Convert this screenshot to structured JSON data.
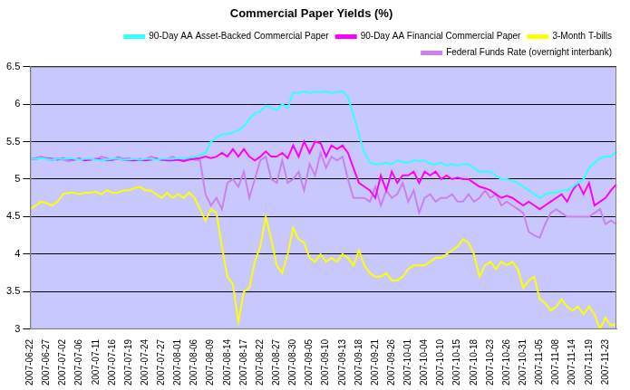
{
  "chart_data": {
    "type": "line",
    "title": "Commercial Paper Yields (%)",
    "categories": [
      "2007-06-22",
      null,
      null,
      "2007-06-27",
      null,
      null,
      "2007-07-02",
      null,
      null,
      "2007-07-06",
      null,
      null,
      "2007-07-11",
      null,
      null,
      "2007-07-16",
      null,
      null,
      "2007-07-19",
      null,
      null,
      "2007-07-24",
      null,
      null,
      "2007-07-27",
      null,
      null,
      "2007-08-01",
      null,
      null,
      "2007-08-06",
      null,
      null,
      "2007-08-09",
      null,
      null,
      "2007-08-14",
      null,
      null,
      "2007-08-17",
      null,
      null,
      "2007-08-22",
      null,
      null,
      "2007-08-27",
      null,
      null,
      "2007-08-30",
      null,
      null,
      "2007-09-05",
      null,
      null,
      "2007-09-10",
      null,
      null,
      "2007-09-13",
      null,
      null,
      "2007-09-18",
      null,
      null,
      "2007-09-21",
      null,
      null,
      "2007-09-26",
      null,
      null,
      "2007-10-01",
      null,
      null,
      "2007-10-04",
      null,
      null,
      "2007-10-10",
      null,
      null,
      "2007-10-15",
      null,
      null,
      "2007-10-18",
      null,
      null,
      "2007-10-23",
      null,
      null,
      "2007-10-26",
      null,
      null,
      "2007-10-31",
      null,
      null,
      "2007-11-05",
      null,
      null,
      "2007-11-08",
      null,
      null,
      "2007-11-14",
      null,
      null,
      "2007-11-19",
      null,
      null,
      "2007-11-23",
      null,
      null
    ],
    "series": [
      {
        "name": "90-Day AA Asset-Backed Commercial Paper",
        "color": "#33ffff",
        "values": [
          5.27,
          5.27,
          5.28,
          5.27,
          5.26,
          5.27,
          5.27,
          5.28,
          5.27,
          5.26,
          5.27,
          5.27,
          5.26,
          5.25,
          5.26,
          5.27,
          5.27,
          5.26,
          5.26,
          5.27,
          5.26,
          5.27,
          5.27,
          5.26,
          5.27,
          5.27,
          5.27,
          5.28,
          5.28,
          5.29,
          5.3,
          5.32,
          5.35,
          5.5,
          5.55,
          5.6,
          5.6,
          5.62,
          5.65,
          5.7,
          5.8,
          5.88,
          5.9,
          5.98,
          5.95,
          5.92,
          6.0,
          5.95,
          6.15,
          6.15,
          6.17,
          6.15,
          6.17,
          6.16,
          6.17,
          6.15,
          6.16,
          6.17,
          6.1,
          5.85,
          5.6,
          5.35,
          5.22,
          5.2,
          5.2,
          5.22,
          5.2,
          5.25,
          5.23,
          5.22,
          5.25,
          5.24,
          5.25,
          5.2,
          5.2,
          5.22,
          5.18,
          5.2,
          5.18,
          5.2,
          5.2,
          5.15,
          5.1,
          5.1,
          5.1,
          5.05,
          5.0,
          5.0,
          4.98,
          4.95,
          4.9,
          4.85,
          4.8,
          4.75,
          4.8,
          4.82,
          4.82,
          4.85,
          4.85,
          4.9,
          4.95,
          5.0,
          5.15,
          5.22,
          5.28,
          5.3,
          5.3,
          5.37
        ]
      },
      {
        "name": "90-Day AA Financial Commercial Paper",
        "color": "#ff00ff",
        "values": [
          5.27,
          5.27,
          5.28,
          5.28,
          5.27,
          5.26,
          5.28,
          5.27,
          5.26,
          5.27,
          5.25,
          5.26,
          5.27,
          5.26,
          5.25,
          5.26,
          5.27,
          5.26,
          5.25,
          5.25,
          5.26,
          5.25,
          5.26,
          5.27,
          5.26,
          5.25,
          5.25,
          5.26,
          5.24,
          5.26,
          5.27,
          5.28,
          5.3,
          5.28,
          5.3,
          5.35,
          5.3,
          5.4,
          5.3,
          5.4,
          5.3,
          5.25,
          5.3,
          5.37,
          5.3,
          5.3,
          5.35,
          5.28,
          5.45,
          5.3,
          5.5,
          5.35,
          5.5,
          5.48,
          5.3,
          5.45,
          5.4,
          5.45,
          5.35,
          5.15,
          4.95,
          4.9,
          4.85,
          4.75,
          5.05,
          4.85,
          5.1,
          4.95,
          5.05,
          5.05,
          5.1,
          4.95,
          5.1,
          5.05,
          5.1,
          5.0,
          5.05,
          5.0,
          5.02,
          5.0,
          5.0,
          4.95,
          4.9,
          4.88,
          4.85,
          4.8,
          4.75,
          4.78,
          4.75,
          4.7,
          4.65,
          4.7,
          4.65,
          4.6,
          4.65,
          4.7,
          4.75,
          4.8,
          4.7,
          4.85,
          4.95,
          4.8,
          4.95,
          4.65,
          4.7,
          4.75,
          4.85,
          4.93
        ]
      },
      {
        "name": "3-Month T-bills",
        "color": "#ffff00",
        "values": [
          4.6,
          4.65,
          4.7,
          4.68,
          4.65,
          4.7,
          4.8,
          4.82,
          4.82,
          4.8,
          4.82,
          4.82,
          4.83,
          4.8,
          4.85,
          4.82,
          4.82,
          4.85,
          4.85,
          4.88,
          4.9,
          4.85,
          4.85,
          4.8,
          4.75,
          4.82,
          4.75,
          4.8,
          4.75,
          4.82,
          4.75,
          4.6,
          4.45,
          4.6,
          4.55,
          4.1,
          3.7,
          3.6,
          3.1,
          3.5,
          3.55,
          3.9,
          4.1,
          4.5,
          4.2,
          3.85,
          3.75,
          4.0,
          4.35,
          4.2,
          4.15,
          3.95,
          3.9,
          4.0,
          3.9,
          3.95,
          3.9,
          4.0,
          3.95,
          3.85,
          4.05,
          3.85,
          3.75,
          3.7,
          3.7,
          3.75,
          3.65,
          3.65,
          3.7,
          3.8,
          3.85,
          3.85,
          3.85,
          3.9,
          3.95,
          3.95,
          4.0,
          4.05,
          4.1,
          4.2,
          4.15,
          4.0,
          3.7,
          3.85,
          3.9,
          3.8,
          3.9,
          3.85,
          3.9,
          3.8,
          3.55,
          3.65,
          3.7,
          3.4,
          3.35,
          3.25,
          3.3,
          3.4,
          3.3,
          3.25,
          3.3,
          3.2,
          3.3,
          3.2,
          3.0,
          3.15,
          3.05,
          3.07
        ]
      },
      {
        "name": "Federal Funds Rate (overnight interbank)",
        "color": "#cc80f0",
        "values": [
          5.27,
          5.28,
          5.3,
          5.27,
          5.25,
          5.28,
          5.26,
          5.24,
          5.26,
          5.28,
          5.25,
          5.27,
          5.26,
          5.3,
          5.28,
          5.25,
          5.3,
          5.27,
          5.28,
          5.25,
          5.27,
          5.26,
          5.3,
          5.28,
          5.25,
          5.27,
          5.3,
          5.26,
          5.25,
          5.28,
          5.26,
          5.25,
          4.8,
          4.65,
          4.75,
          4.6,
          4.95,
          5.0,
          4.9,
          5.1,
          4.75,
          5.0,
          5.25,
          5.3,
          5.0,
          4.95,
          5.25,
          4.95,
          5.0,
          5.1,
          4.85,
          5.2,
          5.05,
          5.35,
          5.15,
          5.3,
          5.25,
          5.3,
          5.0,
          4.75,
          4.75,
          4.75,
          4.7,
          4.9,
          4.65,
          4.85,
          4.75,
          4.8,
          4.95,
          4.7,
          4.85,
          4.55,
          4.75,
          4.8,
          4.7,
          4.75,
          4.75,
          4.8,
          4.7,
          4.7,
          4.8,
          4.7,
          4.75,
          4.85,
          4.75,
          4.8,
          4.65,
          4.7,
          4.65,
          4.6,
          4.55,
          4.3,
          4.25,
          4.22,
          4.4,
          4.55,
          4.6,
          4.55,
          4.5,
          4.5,
          4.5,
          4.5,
          4.5,
          4.55,
          4.6,
          4.4,
          4.45,
          4.4
        ]
      }
    ],
    "ylim": [
      3,
      6.5
    ],
    "yticks": [
      3,
      3.5,
      4,
      4.5,
      5,
      5.5,
      6,
      6.5
    ],
    "grid": true,
    "legend": "top"
  }
}
